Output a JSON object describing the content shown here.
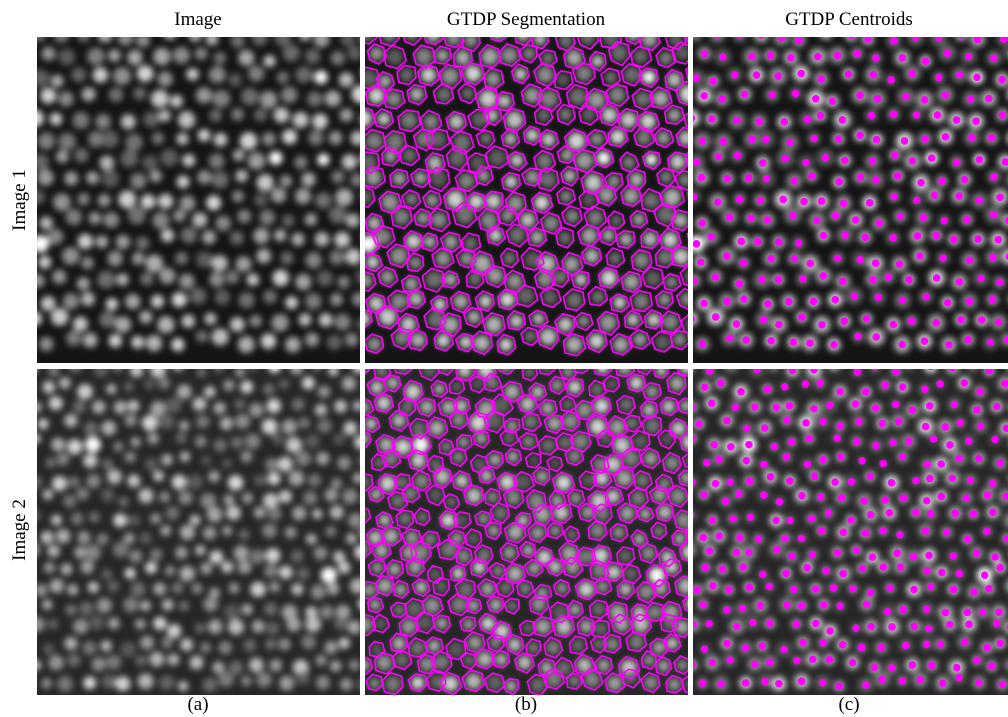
{
  "columns": [
    "Image",
    "GTDP Segmentation",
    "GTDP Centroids"
  ],
  "rows": [
    "Image 1",
    "Image 2"
  ],
  "captions": [
    "(a)",
    "(b)",
    "(c)"
  ]
}
